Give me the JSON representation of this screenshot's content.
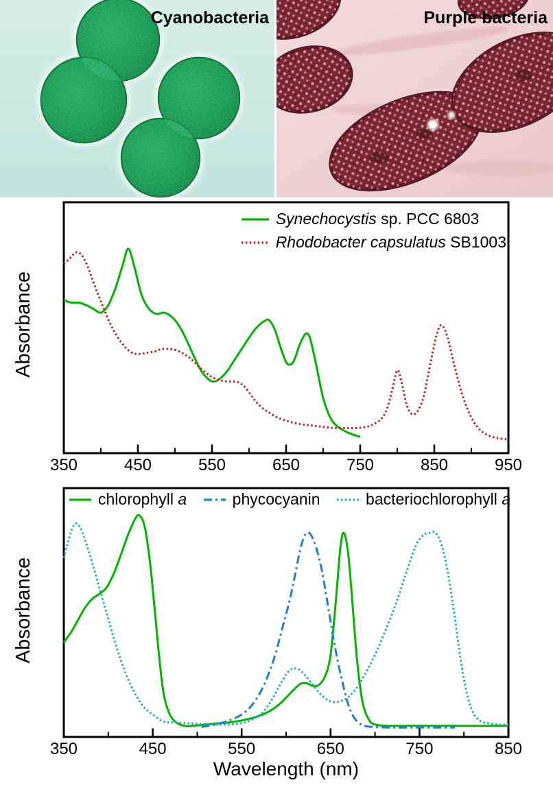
{
  "photos": {
    "left": {
      "label": "Cyanobacteria"
    },
    "right": {
      "label": "Purple bacteria"
    }
  },
  "chart_data": [
    {
      "type": "line",
      "title": "",
      "xlabel": "",
      "ylabel": "Absorbance",
      "x_range": [
        350,
        950
      ],
      "x_ticks": [
        350,
        450,
        550,
        650,
        750,
        850,
        950
      ],
      "x_minor_ticks": [
        400,
        500,
        600,
        700,
        800,
        900
      ],
      "y_range": [
        0,
        1
      ],
      "grid": false,
      "legend_position": "top-right",
      "series": [
        {
          "name": "Synechocystis sp. PCC 6803",
          "label_segments": [
            {
              "text": "Synechocystis",
              "italic": true
            },
            {
              "text": " sp. PCC 6803",
              "italic": false
            }
          ],
          "color": "#00b400",
          "style": "solid",
          "x": [
            350,
            360,
            370,
            380,
            390,
            400,
            410,
            420,
            430,
            437,
            445,
            455,
            465,
            475,
            485,
            495,
            505,
            515,
            525,
            535,
            545,
            552,
            560,
            570,
            580,
            590,
            600,
            610,
            620,
            627,
            635,
            645,
            652,
            660,
            668,
            676,
            682,
            690,
            700,
            710,
            720,
            735,
            750
          ],
          "y": [
            0.61,
            0.6,
            0.6,
            0.59,
            0.575,
            0.56,
            0.59,
            0.66,
            0.755,
            0.815,
            0.745,
            0.63,
            0.575,
            0.555,
            0.56,
            0.545,
            0.51,
            0.455,
            0.39,
            0.33,
            0.295,
            0.285,
            0.295,
            0.325,
            0.37,
            0.415,
            0.46,
            0.5,
            0.525,
            0.53,
            0.49,
            0.4,
            0.355,
            0.365,
            0.43,
            0.475,
            0.46,
            0.36,
            0.22,
            0.14,
            0.105,
            0.08,
            0.065
          ]
        },
        {
          "name": "Rhodobacter capsulatus SB1003",
          "label_segments": [
            {
              "text": "Rhodobacter capsulatus",
              "italic": true
            },
            {
              "text": " SB1003",
              "italic": false
            }
          ],
          "color": "#c81a1a",
          "style": "dotted",
          "x": [
            350,
            358,
            366,
            374,
            382,
            392,
            402,
            412,
            422,
            432,
            442,
            452,
            462,
            472,
            482,
            492,
            502,
            512,
            522,
            532,
            542,
            552,
            562,
            572,
            582,
            590,
            598,
            608,
            618,
            628,
            640,
            655,
            670,
            685,
            700,
            715,
            730,
            745,
            758,
            768,
            778,
            786,
            793,
            800,
            806,
            813,
            820,
            828,
            836,
            845,
            853,
            860,
            868,
            877,
            887,
            897,
            908,
            920,
            935,
            950
          ],
          "y": [
            0.755,
            0.775,
            0.8,
            0.79,
            0.745,
            0.665,
            0.59,
            0.52,
            0.465,
            0.425,
            0.4,
            0.395,
            0.4,
            0.405,
            0.415,
            0.415,
            0.41,
            0.395,
            0.375,
            0.345,
            0.32,
            0.3,
            0.29,
            0.285,
            0.285,
            0.275,
            0.25,
            0.21,
            0.18,
            0.16,
            0.14,
            0.125,
            0.115,
            0.11,
            0.105,
            0.1,
            0.1,
            0.1,
            0.105,
            0.115,
            0.135,
            0.175,
            0.25,
            0.33,
            0.28,
            0.19,
            0.155,
            0.17,
            0.23,
            0.36,
            0.47,
            0.51,
            0.46,
            0.35,
            0.24,
            0.16,
            0.105,
            0.075,
            0.06,
            0.055
          ]
        }
      ]
    },
    {
      "type": "line",
      "title": "",
      "xlabel": "Wavelength (nm)",
      "ylabel": "Absorbance",
      "x_range": [
        350,
        850
      ],
      "x_ticks": [
        350,
        450,
        550,
        650,
        750,
        850
      ],
      "x_minor_ticks": [
        400,
        500,
        600,
        700,
        800
      ],
      "y_range": [
        0,
        1
      ],
      "grid": false,
      "legend_position": "top",
      "series": [
        {
          "name": "chlorophyll a",
          "label_segments": [
            {
              "text": "chlorophyll ",
              "italic": false
            },
            {
              "text": "a",
              "italic": true
            }
          ],
          "color": "#00b400",
          "style": "solid",
          "x": [
            350,
            358,
            366,
            374,
            382,
            390,
            398,
            406,
            414,
            422,
            430,
            435,
            441,
            447,
            452,
            457,
            462,
            468,
            475,
            485,
            495,
            510,
            525,
            540,
            555,
            570,
            582,
            592,
            602,
            610,
            617,
            624,
            630,
            637,
            644,
            650,
            656,
            661,
            665,
            670,
            675,
            680,
            686,
            693,
            700,
            715,
            740,
            780,
            850
          ],
          "y": [
            0.38,
            0.42,
            0.47,
            0.52,
            0.555,
            0.575,
            0.6,
            0.655,
            0.73,
            0.81,
            0.875,
            0.89,
            0.845,
            0.7,
            0.52,
            0.33,
            0.18,
            0.1,
            0.062,
            0.045,
            0.045,
            0.05,
            0.055,
            0.06,
            0.07,
            0.085,
            0.105,
            0.13,
            0.165,
            0.195,
            0.215,
            0.215,
            0.205,
            0.21,
            0.245,
            0.33,
            0.55,
            0.76,
            0.82,
            0.73,
            0.52,
            0.3,
            0.14,
            0.07,
            0.05,
            0.045,
            0.045,
            0.045,
            0.045
          ]
        },
        {
          "name": "phycocyanin",
          "label_segments": [
            {
              "text": "phycocyanin",
              "italic": false
            }
          ],
          "color": "#1f7fd6",
          "style": "dashdot",
          "x": [
            505,
            520,
            535,
            550,
            562,
            574,
            586,
            596,
            604,
            610,
            616,
            621,
            626,
            632,
            639,
            646,
            654,
            662,
            670,
            678,
            688,
            700,
            715,
            730,
            750,
            770,
            790
          ],
          "y": [
            0.04,
            0.05,
            0.065,
            0.09,
            0.13,
            0.2,
            0.31,
            0.44,
            0.55,
            0.65,
            0.755,
            0.81,
            0.82,
            0.78,
            0.69,
            0.55,
            0.38,
            0.24,
            0.13,
            0.07,
            0.045,
            0.04,
            0.038,
            0.038,
            0.038,
            0.038,
            0.038
          ]
        },
        {
          "name": "bacteriochlorophyll a",
          "label_segments": [
            {
              "text": "bacteriochlorophyll ",
              "italic": false
            },
            {
              "text": "a",
              "italic": true
            }
          ],
          "color": "#12aebe",
          "style": "dotted",
          "x": [
            350,
            356,
            362,
            368,
            374,
            382,
            390,
            398,
            406,
            414,
            422,
            430,
            440,
            450,
            462,
            475,
            490,
            505,
            520,
            535,
            550,
            562,
            574,
            584,
            594,
            602,
            608,
            615,
            622,
            630,
            638,
            646,
            654,
            662,
            670,
            680,
            690,
            700,
            712,
            724,
            736,
            746,
            754,
            761,
            768,
            775,
            782,
            789,
            796,
            803,
            810,
            818,
            828,
            840,
            850
          ],
          "y": [
            0.72,
            0.8,
            0.855,
            0.845,
            0.79,
            0.7,
            0.6,
            0.5,
            0.4,
            0.31,
            0.235,
            0.175,
            0.12,
            0.09,
            0.062,
            0.058,
            0.055,
            0.052,
            0.05,
            0.05,
            0.055,
            0.07,
            0.1,
            0.15,
            0.215,
            0.26,
            0.275,
            0.27,
            0.245,
            0.21,
            0.175,
            0.15,
            0.14,
            0.145,
            0.16,
            0.2,
            0.26,
            0.33,
            0.43,
            0.54,
            0.67,
            0.77,
            0.81,
            0.82,
            0.82,
            0.77,
            0.66,
            0.5,
            0.32,
            0.18,
            0.1,
            0.065,
            0.055,
            0.05,
            0.05
          ]
        }
      ]
    }
  ]
}
